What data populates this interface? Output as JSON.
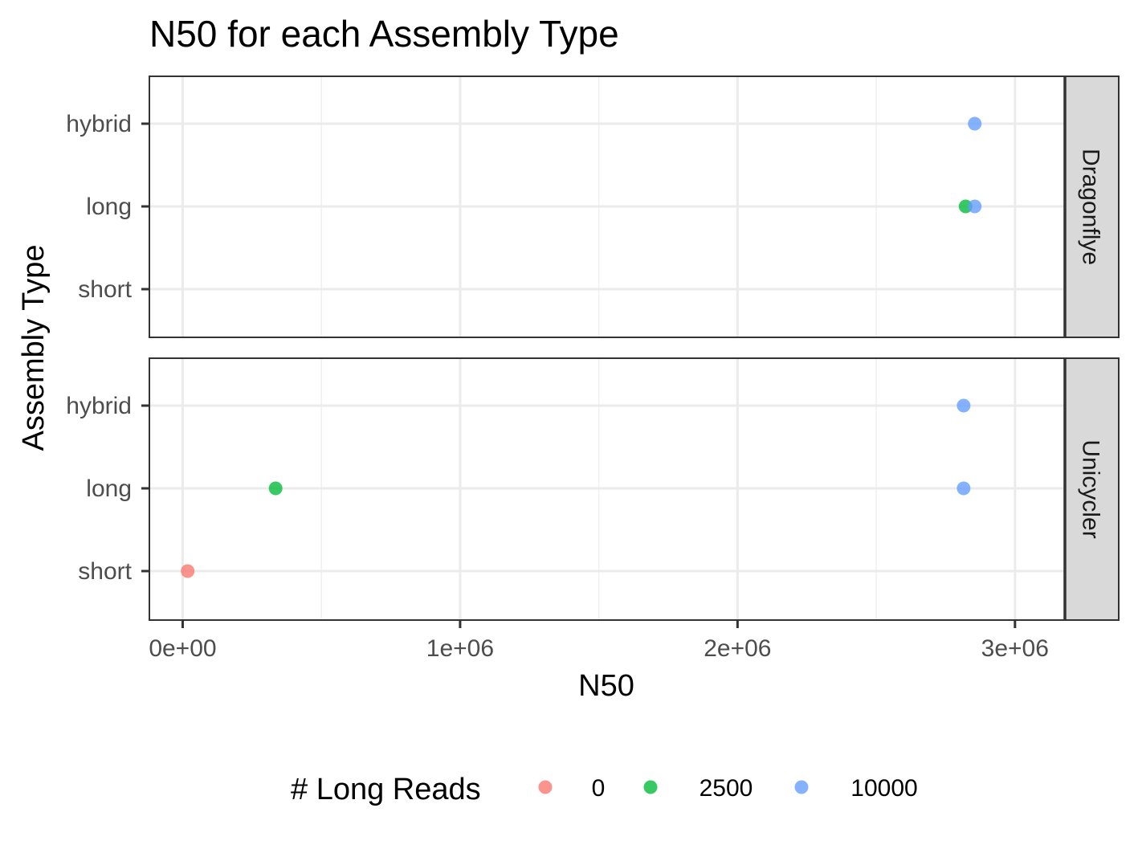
{
  "chart_data": {
    "type": "scatter",
    "title": "N50 for each Assembly Type",
    "xlabel": "N50",
    "ylabel": "Assembly Type",
    "xlim": [
      -120000,
      3180000
    ],
    "x_ticks": [
      0,
      1000000,
      2000000,
      3000000
    ],
    "x_tick_labels": [
      "0e+00",
      "1e+06",
      "2e+06",
      "3e+06"
    ],
    "categories": [
      "hybrid",
      "long",
      "short"
    ],
    "grid": true,
    "facet_position": "right",
    "panels": [
      {
        "label": "Dragonflye",
        "points": [
          {
            "x": 2855000,
            "y": "hybrid",
            "long_reads": "10000"
          },
          {
            "x": 2822000,
            "y": "long",
            "long_reads": "2500"
          },
          {
            "x": 2855000,
            "y": "long",
            "long_reads": "10000"
          }
        ]
      },
      {
        "label": "Unicycler",
        "points": [
          {
            "x": 2815000,
            "y": "hybrid",
            "long_reads": "10000"
          },
          {
            "x": 335000,
            "y": "long",
            "long_reads": "2500"
          },
          {
            "x": 2815000,
            "y": "long",
            "long_reads": "10000"
          },
          {
            "x": 18000,
            "y": "short",
            "long_reads": "0"
          }
        ]
      }
    ],
    "legend": {
      "title": "# Long Reads",
      "position": "bottom",
      "entries": [
        {
          "label": "0",
          "color": "#f8766d"
        },
        {
          "label": "2500",
          "color": "#00ba38"
        },
        {
          "label": "10000",
          "color": "#619cff"
        }
      ]
    }
  }
}
